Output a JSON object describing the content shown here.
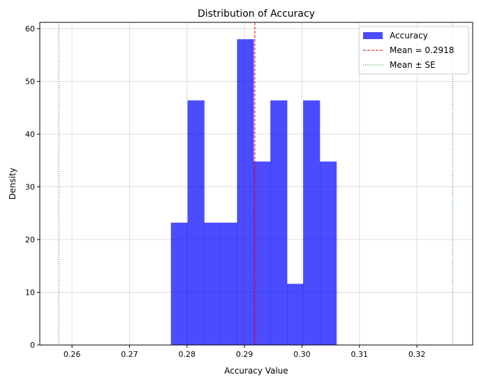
{
  "chart_data": {
    "type": "bar",
    "title": "Distribution of Accuracy",
    "xlabel": "Accuracy Value",
    "ylabel": "Density",
    "xlim": [
      0.2544,
      0.3297
    ],
    "ylim": [
      0,
      61.2
    ],
    "xticks": [
      "0.26",
      "0.27",
      "0.28",
      "0.29",
      "0.30",
      "0.31",
      "0.32"
    ],
    "yticks": [
      "0",
      "10",
      "20",
      "30",
      "40",
      "50",
      "60"
    ],
    "grid": true,
    "legend_position": "top-right",
    "bin_edges": [
      0.2772,
      0.2801,
      0.283,
      0.2858,
      0.2887,
      0.2916,
      0.2945,
      0.2974,
      0.3002,
      0.3031,
      0.306
    ],
    "values": [
      23.2,
      46.4,
      23.2,
      23.2,
      58.0,
      34.8,
      46.4,
      11.6,
      46.4,
      34.8
    ],
    "bar_color": "#4b4bff",
    "mean": 0.2918,
    "mean_minus_se": 0.2577,
    "mean_plus_se": 0.3262,
    "legend": [
      {
        "label": "Accuracy",
        "color": "#4b4bff",
        "style": "patch"
      },
      {
        "label": "Mean = 0.2918",
        "color": "#ff0000",
        "style": "dashed"
      },
      {
        "label": "Mean ± SE",
        "color": "#008000",
        "style": "dotted"
      }
    ]
  }
}
